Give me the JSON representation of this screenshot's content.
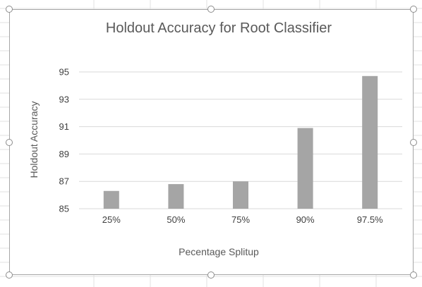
{
  "colors": {
    "bar": "#a5a5a5",
    "gridline": "#d9d9d9",
    "text": "#404040",
    "frame": "#a6a6a6",
    "sheet_grid": "#e1e1e1"
  },
  "chart_data": {
    "type": "bar",
    "title": "Holdout Accuracy for Root Classifier",
    "xlabel": "Pecentage Splitup",
    "ylabel": "Holdout Accuracy",
    "categories": [
      "25%",
      "50%",
      "75%",
      "90%",
      "97.5%"
    ],
    "values": [
      86.3,
      86.8,
      87.0,
      90.9,
      94.7
    ],
    "ylim": [
      85,
      95
    ],
    "yticks": [
      85,
      87,
      89,
      91,
      93,
      95
    ],
    "grid": true,
    "legend": "none"
  }
}
